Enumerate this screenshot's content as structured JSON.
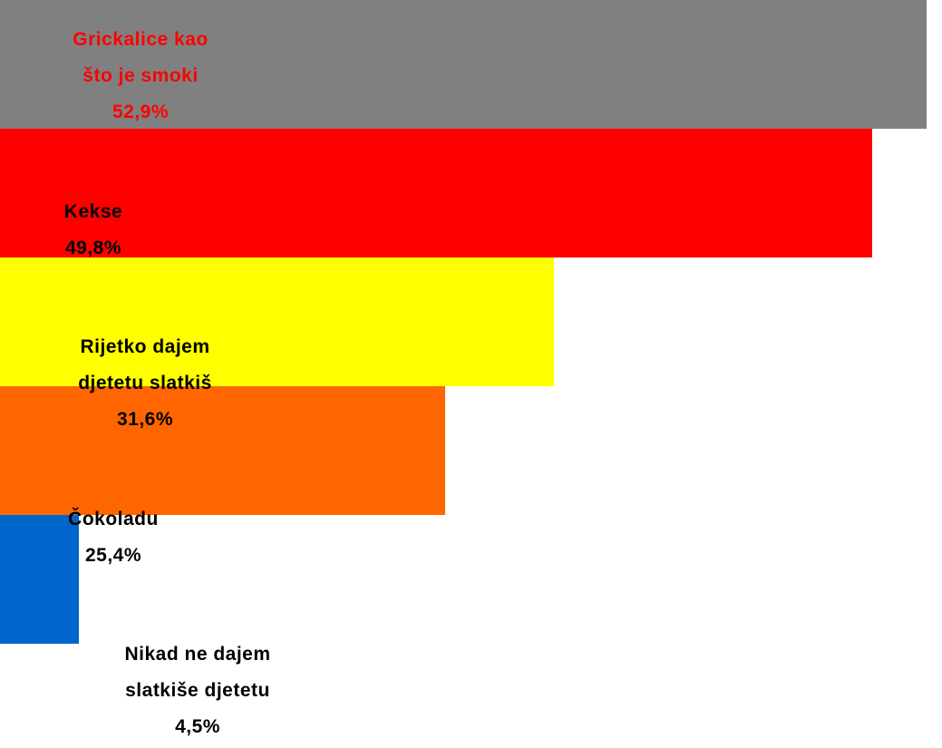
{
  "chart_data": {
    "type": "bar",
    "orientation": "horizontal",
    "categories": [
      "Grickalice kao\nšto je smoki",
      "Kekse",
      "Rijetko dajem\ndjetetu slatkiš",
      "Čokoladu",
      "Nikad ne dajem\nslatkiše djetetu"
    ],
    "values": [
      52.9,
      49.8,
      31.6,
      25.4,
      4.5
    ],
    "value_labels": [
      "52,9%",
      "49,8%",
      "31,6%",
      "25,4%",
      "4,5%"
    ],
    "colors": [
      "#808080",
      "#ff0000",
      "#ffff00",
      "#ff6600",
      "#0066cc"
    ],
    "label_colors": [
      "#ff0000",
      "#000000",
      "#000000",
      "#000000",
      "#000000"
    ],
    "xlim": [
      0,
      53
    ]
  }
}
